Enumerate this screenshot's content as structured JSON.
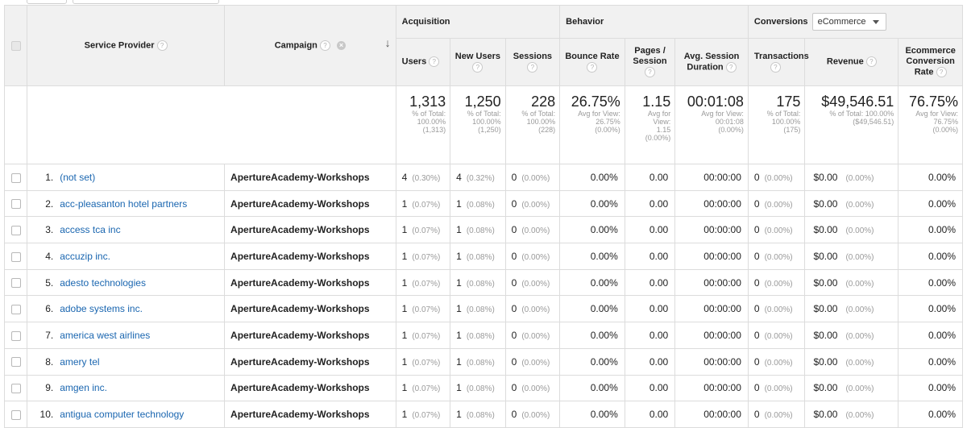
{
  "headers": {
    "service_provider": "Service Provider",
    "campaign": "Campaign",
    "acquisition": "Acquisition",
    "behavior": "Behavior",
    "conversions": "Conversions",
    "conversions_select": "eCommerce",
    "users": "Users",
    "new_users": "New Users",
    "sessions": "Sessions",
    "bounce_rate": "Bounce Rate",
    "pages_session_l1": "Pages /",
    "pages_session_l2": "Session",
    "avg_session_l1": "Avg. Session",
    "avg_session_l2": "Duration",
    "transactions": "Transactions",
    "revenue": "Revenue",
    "ecr_l1": "Ecommerce",
    "ecr_l2": "Conversion",
    "ecr_l3": "Rate"
  },
  "totals": {
    "users": {
      "big": "1,313",
      "l1": "% of Total:",
      "l2": "100.00%",
      "l3": "(1,313)"
    },
    "new_users": {
      "big": "1,250",
      "l1": "% of Total:",
      "l2": "100.00%",
      "l3": "(1,250)"
    },
    "sessions": {
      "big": "228",
      "l1": "% of Total:",
      "l2": "100.00%",
      "l3": "(228)"
    },
    "bounce_rate": {
      "big": "26.75%",
      "l1": "Avg for View:",
      "l2": "26.75%",
      "l3": "(0.00%)"
    },
    "pages_session": {
      "big": "1.15",
      "l1": "Avg for",
      "l2": "View:",
      "l3": "1.15",
      "l4": "(0.00%)"
    },
    "avg_duration": {
      "big": "00:01:08",
      "l1": "Avg for View:",
      "l2": "00:01:08",
      "l3": "(0.00%)"
    },
    "transactions": {
      "big": "175",
      "l1": "% of Total:",
      "l2": "100.00%",
      "l3": "(175)"
    },
    "revenue": {
      "big": "$49,546.51",
      "l1": "% of Total: 100.00%",
      "l2": "($49,546.51)"
    },
    "ecr": {
      "big": "76.75%",
      "l1": "Avg for View:",
      "l2": "76.75%",
      "l3": "(0.00%)"
    }
  },
  "rows": [
    {
      "num": "1.",
      "provider": "(not set)",
      "campaign": "ApertureAcademy-Workshops",
      "users": "4",
      "users_pct": "(0.30%)",
      "new_users": "4",
      "new_users_pct": "(0.32%)",
      "sessions": "0",
      "sessions_pct": "(0.00%)",
      "bounce": "0.00%",
      "pages": "0.00",
      "duration": "00:00:00",
      "trans": "0",
      "trans_pct": "(0.00%)",
      "revenue": "$0.00",
      "revenue_pct": "(0.00%)",
      "ecr": "0.00%"
    },
    {
      "num": "2.",
      "provider": "acc-pleasanton hotel partners",
      "campaign": "ApertureAcademy-Workshops",
      "users": "1",
      "users_pct": "(0.07%)",
      "new_users": "1",
      "new_users_pct": "(0.08%)",
      "sessions": "0",
      "sessions_pct": "(0.00%)",
      "bounce": "0.00%",
      "pages": "0.00",
      "duration": "00:00:00",
      "trans": "0",
      "trans_pct": "(0.00%)",
      "revenue": "$0.00",
      "revenue_pct": "(0.00%)",
      "ecr": "0.00%"
    },
    {
      "num": "3.",
      "provider": "access tca inc",
      "campaign": "ApertureAcademy-Workshops",
      "users": "1",
      "users_pct": "(0.07%)",
      "new_users": "1",
      "new_users_pct": "(0.08%)",
      "sessions": "0",
      "sessions_pct": "(0.00%)",
      "bounce": "0.00%",
      "pages": "0.00",
      "duration": "00:00:00",
      "trans": "0",
      "trans_pct": "(0.00%)",
      "revenue": "$0.00",
      "revenue_pct": "(0.00%)",
      "ecr": "0.00%"
    },
    {
      "num": "4.",
      "provider": "accuzip inc.",
      "campaign": "ApertureAcademy-Workshops",
      "users": "1",
      "users_pct": "(0.07%)",
      "new_users": "1",
      "new_users_pct": "(0.08%)",
      "sessions": "0",
      "sessions_pct": "(0.00%)",
      "bounce": "0.00%",
      "pages": "0.00",
      "duration": "00:00:00",
      "trans": "0",
      "trans_pct": "(0.00%)",
      "revenue": "$0.00",
      "revenue_pct": "(0.00%)",
      "ecr": "0.00%"
    },
    {
      "num": "5.",
      "provider": "adesto technologies",
      "campaign": "ApertureAcademy-Workshops",
      "users": "1",
      "users_pct": "(0.07%)",
      "new_users": "1",
      "new_users_pct": "(0.08%)",
      "sessions": "0",
      "sessions_pct": "(0.00%)",
      "bounce": "0.00%",
      "pages": "0.00",
      "duration": "00:00:00",
      "trans": "0",
      "trans_pct": "(0.00%)",
      "revenue": "$0.00",
      "revenue_pct": "(0.00%)",
      "ecr": "0.00%"
    },
    {
      "num": "6.",
      "provider": "adobe systems inc.",
      "campaign": "ApertureAcademy-Workshops",
      "users": "1",
      "users_pct": "(0.07%)",
      "new_users": "1",
      "new_users_pct": "(0.08%)",
      "sessions": "0",
      "sessions_pct": "(0.00%)",
      "bounce": "0.00%",
      "pages": "0.00",
      "duration": "00:00:00",
      "trans": "0",
      "trans_pct": "(0.00%)",
      "revenue": "$0.00",
      "revenue_pct": "(0.00%)",
      "ecr": "0.00%"
    },
    {
      "num": "7.",
      "provider": "america west airlines",
      "campaign": "ApertureAcademy-Workshops",
      "users": "1",
      "users_pct": "(0.07%)",
      "new_users": "1",
      "new_users_pct": "(0.08%)",
      "sessions": "0",
      "sessions_pct": "(0.00%)",
      "bounce": "0.00%",
      "pages": "0.00",
      "duration": "00:00:00",
      "trans": "0",
      "trans_pct": "(0.00%)",
      "revenue": "$0.00",
      "revenue_pct": "(0.00%)",
      "ecr": "0.00%"
    },
    {
      "num": "8.",
      "provider": "amery tel",
      "campaign": "ApertureAcademy-Workshops",
      "users": "1",
      "users_pct": "(0.07%)",
      "new_users": "1",
      "new_users_pct": "(0.08%)",
      "sessions": "0",
      "sessions_pct": "(0.00%)",
      "bounce": "0.00%",
      "pages": "0.00",
      "duration": "00:00:00",
      "trans": "0",
      "trans_pct": "(0.00%)",
      "revenue": "$0.00",
      "revenue_pct": "(0.00%)",
      "ecr": "0.00%"
    },
    {
      "num": "9.",
      "provider": "amgen inc.",
      "campaign": "ApertureAcademy-Workshops",
      "users": "1",
      "users_pct": "(0.07%)",
      "new_users": "1",
      "new_users_pct": "(0.08%)",
      "sessions": "0",
      "sessions_pct": "(0.00%)",
      "bounce": "0.00%",
      "pages": "0.00",
      "duration": "00:00:00",
      "trans": "0",
      "trans_pct": "(0.00%)",
      "revenue": "$0.00",
      "revenue_pct": "(0.00%)",
      "ecr": "0.00%"
    },
    {
      "num": "10.",
      "provider": "antigua computer technology",
      "campaign": "ApertureAcademy-Workshops",
      "users": "1",
      "users_pct": "(0.07%)",
      "new_users": "1",
      "new_users_pct": "(0.08%)",
      "sessions": "0",
      "sessions_pct": "(0.00%)",
      "bounce": "0.00%",
      "pages": "0.00",
      "duration": "00:00:00",
      "trans": "0",
      "trans_pct": "(0.00%)",
      "revenue": "$0.00",
      "revenue_pct": "(0.00%)",
      "ecr": "0.00%"
    }
  ],
  "icons": {
    "help": "help-circle-icon",
    "remove": "remove-dimension-icon",
    "sort": "sort-descending-icon",
    "dropdown": "caret-down-icon"
  },
  "colors": {
    "link": "#1a66b0",
    "header_bg": "#f1f1f1",
    "border": "#dcdcdc",
    "muted": "#9a9a9a"
  }
}
